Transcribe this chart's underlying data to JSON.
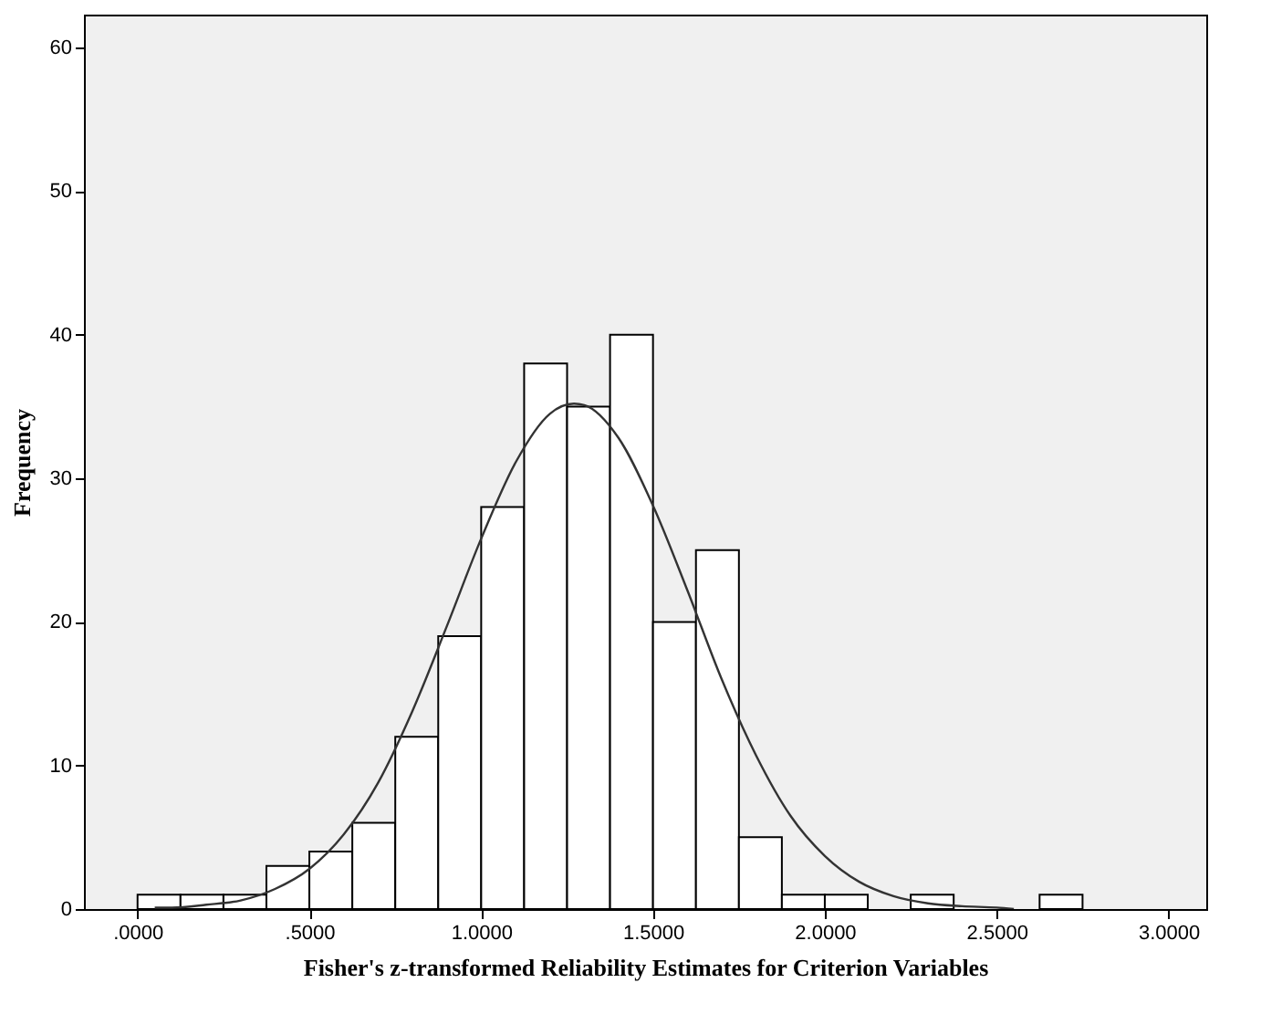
{
  "chart_data": {
    "type": "histogram",
    "xlabel": "Fisher's z-transformed Reliability Estimates for Criterion Variables",
    "ylabel": "Frequency",
    "bins": [
      0,
      0.125,
      0.25,
      0.375,
      0.5,
      0.625,
      0.75,
      0.875,
      1.0,
      1.125,
      1.25,
      1.375,
      1.5,
      1.625,
      1.75,
      1.875,
      2.0,
      2.125,
      2.25,
      2.375,
      2.5,
      2.625,
      2.75
    ],
    "series": [
      {
        "color": "#ffffff",
        "values": [
          1,
          1,
          1,
          3,
          4,
          6,
          12,
          19,
          28,
          38,
          35,
          40,
          20,
          25,
          5,
          1,
          1,
          0,
          1,
          0,
          0,
          1
        ]
      },
      {
        "type": "line",
        "color": "#333333",
        "x": [
          0.05,
          0.1,
          0.2,
          0.3,
          0.4,
          0.5,
          0.6,
          0.7,
          0.8,
          0.9,
          1.0,
          1.1,
          1.2,
          1.27,
          1.3,
          1.4,
          1.5,
          1.6,
          1.7,
          1.8,
          1.9,
          2.0,
          2.1,
          2.2,
          2.3,
          2.4,
          2.5,
          2.55
        ],
        "values": [
          0.1,
          0.1,
          0.3,
          0.6,
          1.4,
          2.8,
          5.2,
          8.8,
          13.8,
          19.7,
          25.8,
          31.1,
          34.5,
          35.2,
          35.1,
          32.8,
          28.1,
          22.2,
          16.0,
          10.7,
          6.5,
          3.7,
          1.9,
          0.9,
          0.4,
          0.2,
          0.1,
          0.0
        ]
      }
    ],
    "xlim": [
      -0.156,
      3.11
    ],
    "xticks": [
      {
        "value": 0,
        "label": ".0000"
      },
      {
        "value": 0.5,
        "label": ".5000"
      },
      {
        "value": 1,
        "label": "1.0000"
      },
      {
        "value": 1.5,
        "label": "1.5000"
      },
      {
        "value": 2,
        "label": "2.0000"
      },
      {
        "value": 2.5,
        "label": "2.5000"
      },
      {
        "value": 3,
        "label": "3.0000"
      }
    ],
    "ylim": [
      0,
      62.3
    ],
    "yticks": [
      0,
      10,
      20,
      30,
      40,
      50,
      60
    ],
    "grid": false
  }
}
